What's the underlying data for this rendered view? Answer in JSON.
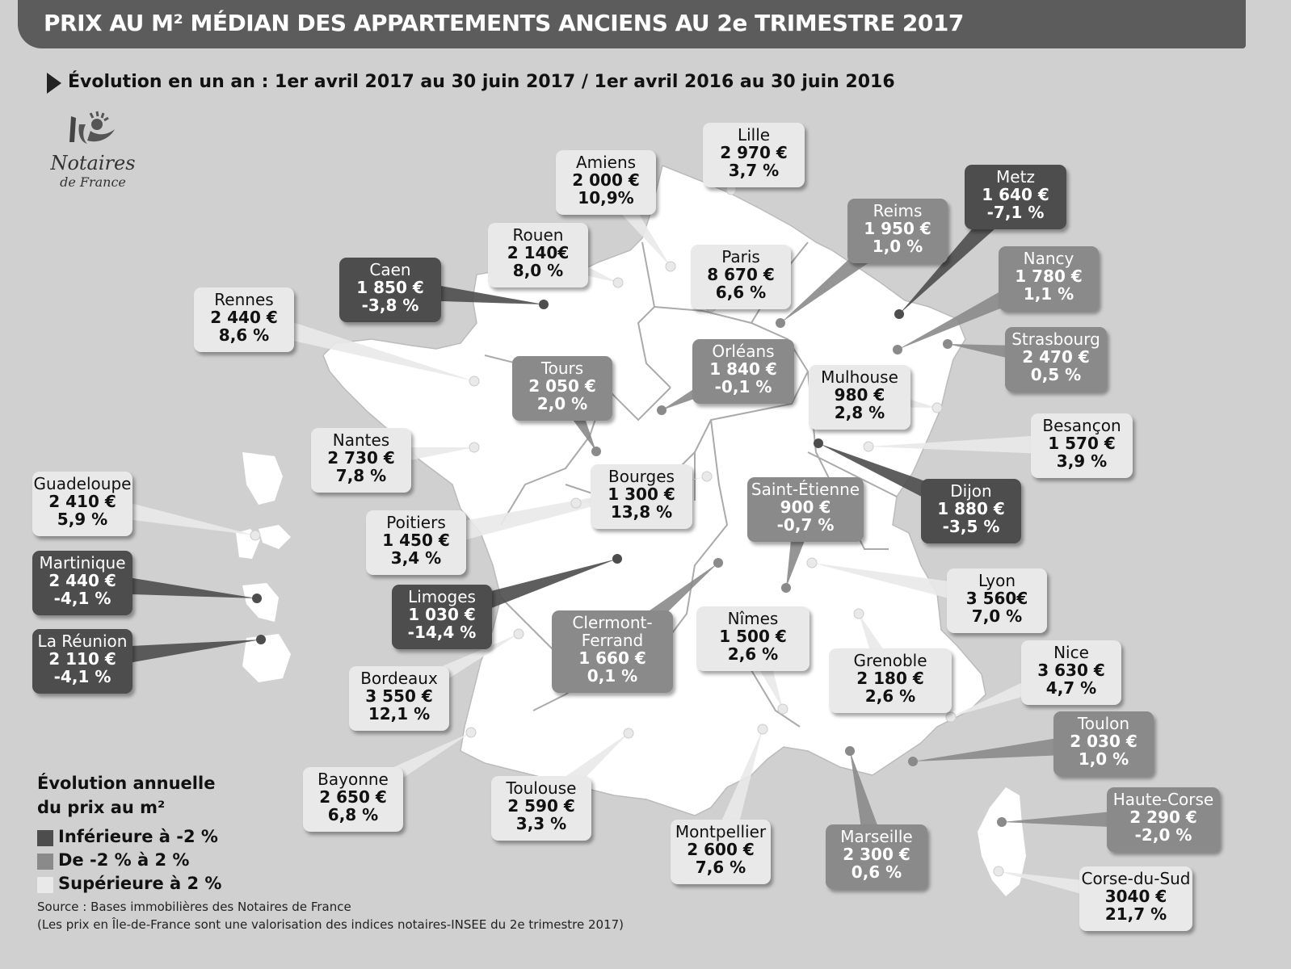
{
  "title": "PRIX AU M² MÉDIAN DES APPARTEMENTS ANCIENS AU 2e TRIMESTRE 2017",
  "subtitle": "Évolution en un an : 1er avril 2017 au 30 juin 2017 / 1er avril 2016 au 30 juin 2016",
  "logo": {
    "name": "Notaires",
    "sub": "de France"
  },
  "legend": {
    "title_line1": "Évolution annuelle",
    "title_line2": "du prix au m²",
    "items": [
      {
        "label": "Inférieure à -2 %",
        "color": "#4d4d4d"
      },
      {
        "label": "De -2 % à 2 %",
        "color": "#8a8a8a"
      },
      {
        "label": "Supérieure à 2 %",
        "color": "#e9e9e9"
      }
    ]
  },
  "source": {
    "line1": "Source : Bases immobilières des Notaires de France",
    "line2": "(Les prix en Île-de-France sont une valorisation des indices notaires-INSEE du 2e trimestre 2017)"
  },
  "colors": {
    "low": "#4d4d4d",
    "mid": "#8a8a8a",
    "high": "#e9e9e9",
    "map": "#ffffff",
    "background": "#d0d0d0",
    "banner": "#5c5c5c"
  },
  "cities": [
    {
      "name": "Lille",
      "price": "2 970 €",
      "evolution": "3,7 %",
      "category": "high"
    },
    {
      "name": "Amiens",
      "price": "2 000 €",
      "evolution": "10,9%",
      "category": "high"
    },
    {
      "name": "Metz",
      "price": "1 640 €",
      "evolution": "-7,1 %",
      "category": "low"
    },
    {
      "name": "Reims",
      "price": "1 950 €",
      "evolution": "1,0 %",
      "category": "mid"
    },
    {
      "name": "Rouen",
      "price": "2 140€",
      "evolution": "8,0 %",
      "category": "high"
    },
    {
      "name": "Paris",
      "price": "8 670 €",
      "evolution": "6,6 %",
      "category": "high"
    },
    {
      "name": "Caen",
      "price": "1 850 €",
      "evolution": "-3,8 %",
      "category": "low"
    },
    {
      "name": "Nancy",
      "price": "1 780 €",
      "evolution": "1,1 %",
      "category": "mid"
    },
    {
      "name": "Rennes",
      "price": "2 440 €",
      "evolution": "8,6 %",
      "category": "high"
    },
    {
      "name": "Strasbourg",
      "price": "2 470 €",
      "evolution": "0,5 %",
      "category": "mid"
    },
    {
      "name": "Orléans",
      "price": "1 840 €",
      "evolution": "-0,1 %",
      "category": "mid"
    },
    {
      "name": "Tours",
      "price": "2 050 €",
      "evolution": "2,0 %",
      "category": "mid"
    },
    {
      "name": "Mulhouse",
      "price": "980 €",
      "evolution": "2,8 %",
      "category": "high"
    },
    {
      "name": "Besançon",
      "price": "1 570 €",
      "evolution": "3,9 %",
      "category": "high"
    },
    {
      "name": "Nantes",
      "price": "2 730 €",
      "evolution": "7,8 %",
      "category": "high"
    },
    {
      "name": "Bourges",
      "price": "1 300 €",
      "evolution": "13,8 %",
      "category": "high"
    },
    {
      "name": "Saint-Étienne",
      "price": "900 €",
      "evolution": "-0,7 %",
      "category": "mid"
    },
    {
      "name": "Dijon",
      "price": "1 880 €",
      "evolution": "-3,5 %",
      "category": "low"
    },
    {
      "name": "Guadeloupe",
      "price": "2 410 €",
      "evolution": "5,9 %",
      "category": "high"
    },
    {
      "name": "Poitiers",
      "price": "1 450 €",
      "evolution": "3,4 %",
      "category": "high"
    },
    {
      "name": "Martinique",
      "price": "2 440 €",
      "evolution": "-4,1 %",
      "category": "low"
    },
    {
      "name": "Lyon",
      "price": "3 560€",
      "evolution": "7,0 %",
      "category": "high"
    },
    {
      "name": "Limoges",
      "price": "1 030 €",
      "evolution": "-14,4 %",
      "category": "low"
    },
    {
      "name": "Clermont-Ferrand",
      "price": "1 660 €",
      "evolution": "0,1 %",
      "category": "mid"
    },
    {
      "name": "Nîmes",
      "price": "1 500 €",
      "evolution": "2,6 %",
      "category": "high"
    },
    {
      "name": "La Réunion",
      "price": "2 110 €",
      "evolution": "-4,1 %",
      "category": "low"
    },
    {
      "name": "Nice",
      "price": "3 630 €",
      "evolution": "4,7 %",
      "category": "high"
    },
    {
      "name": "Grenoble",
      "price": "2 180 €",
      "evolution": "2,6 %",
      "category": "high"
    },
    {
      "name": "Bordeaux",
      "price": "3 550 €",
      "evolution": "12,1 %",
      "category": "high"
    },
    {
      "name": "Toulon",
      "price": "2 030 €",
      "evolution": "1,0 %",
      "category": "mid"
    },
    {
      "name": "Bayonne",
      "price": "2 650 €",
      "evolution": "6,8 %",
      "category": "high"
    },
    {
      "name": "Toulouse",
      "price": "2 590 €",
      "evolution": "3,3 %",
      "category": "high"
    },
    {
      "name": "Haute-Corse",
      "price": "2 290 €",
      "evolution": "-2,0 %",
      "category": "mid"
    },
    {
      "name": "Montpellier",
      "price": "2 600 €",
      "evolution": "7,6 %",
      "category": "high"
    },
    {
      "name": "Marseille",
      "price": "2 300 €",
      "evolution": "0,6 %",
      "category": "mid"
    },
    {
      "name": "Corse-du-Sud",
      "price": "3040 €",
      "evolution": "21,7 %",
      "category": "high"
    }
  ]
}
